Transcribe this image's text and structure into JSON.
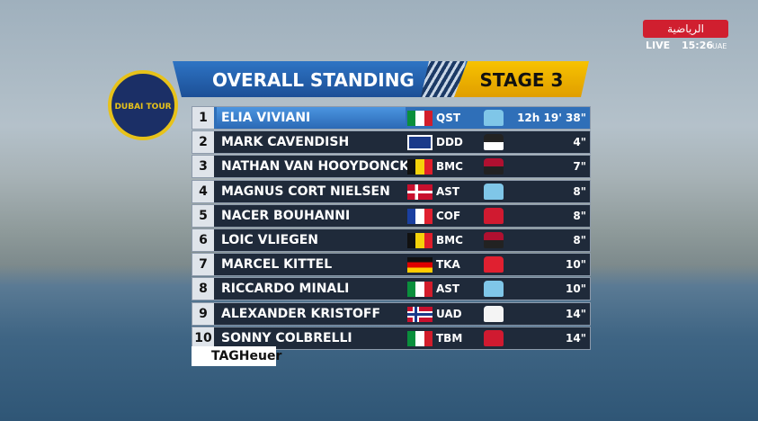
{
  "channel": {
    "name": "الرياضية",
    "live": "LIVE",
    "time": "15:26",
    "zone": "UAE"
  },
  "logo": "DUBAI TOUR",
  "header": {
    "title": "OVERALL STANDING",
    "stage": "STAGE 3"
  },
  "standings": [
    {
      "rank": "1",
      "name": "ELIA VIVIANI",
      "team": "QST",
      "time": "12h 19' 38\""
    },
    {
      "rank": "2",
      "name": "MARK CAVENDISH",
      "team": "DDD",
      "time": "4\""
    },
    {
      "rank": "3",
      "name": "NATHAN VAN HOOYDONCK",
      "team": "BMC",
      "time": "7\""
    },
    {
      "rank": "4",
      "name": "MAGNUS CORT NIELSEN",
      "team": "AST",
      "time": "8\""
    },
    {
      "rank": "5",
      "name": "NACER BOUHANNI",
      "team": "COF",
      "time": "8\""
    },
    {
      "rank": "6",
      "name": "LOIC VLIEGEN",
      "team": "BMC",
      "time": "8\""
    },
    {
      "rank": "7",
      "name": "MARCEL KITTEL",
      "team": "TKA",
      "time": "10\""
    },
    {
      "rank": "8",
      "name": "RICCARDO MINALI",
      "team": "AST",
      "time": "10\""
    },
    {
      "rank": "9",
      "name": "ALEXANDER KRISTOFF",
      "team": "UAD",
      "time": "14\""
    },
    {
      "rank": "10",
      "name": "SONNY COLBRELLI",
      "team": "TBM",
      "time": "14\""
    }
  ],
  "sponsor": "TAGHeuer"
}
